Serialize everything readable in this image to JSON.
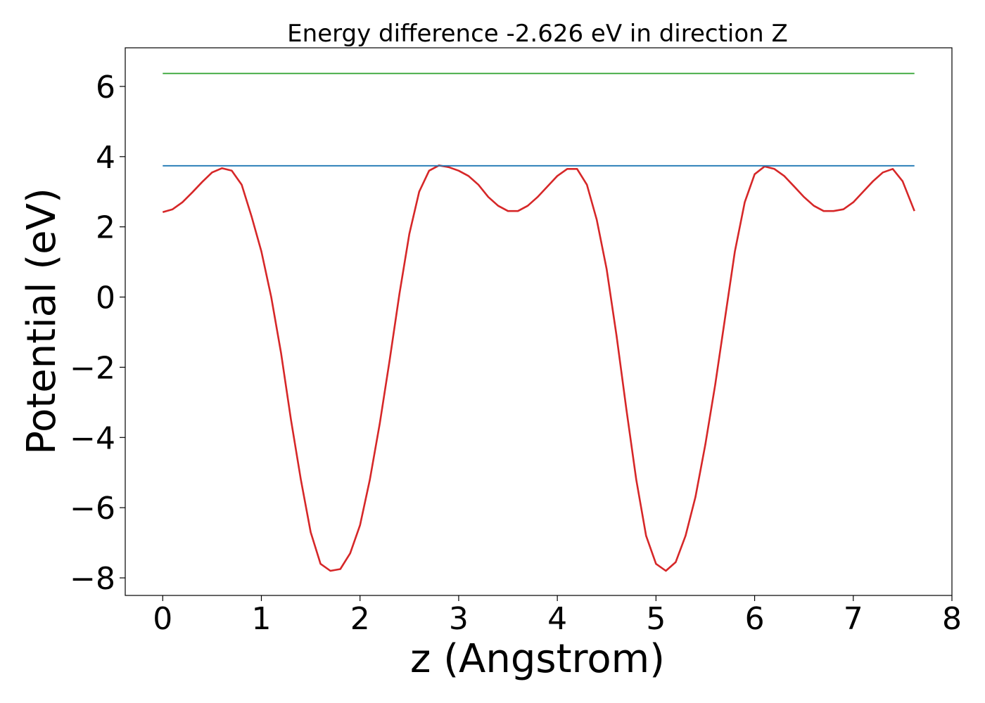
{
  "chart_data": {
    "type": "line",
    "title": "Energy difference -2.626 eV in direction Z",
    "xlabel": "z (Angstrom)",
    "ylabel": "Potential (eV)",
    "xlim": [
      -0.38,
      8.0
    ],
    "ylim": [
      -8.5,
      7.1
    ],
    "x_ticks": [
      0,
      1,
      2,
      3,
      4,
      5,
      6,
      7,
      8
    ],
    "x_tick_labels": [
      "0",
      "1",
      "2",
      "3",
      "4",
      "5",
      "6",
      "7",
      "8"
    ],
    "y_ticks": [
      -8,
      -6,
      -4,
      -2,
      0,
      2,
      4,
      6
    ],
    "y_tick_labels": [
      "−8",
      "−6",
      "−4",
      "−2",
      "0",
      "2",
      "4",
      "6"
    ],
    "grid": false,
    "series": [
      {
        "color": "#d62728",
        "x": [
          0.0,
          0.1,
          0.2,
          0.3,
          0.4,
          0.5,
          0.6,
          0.7,
          0.8,
          0.9,
          1.0,
          1.1,
          1.2,
          1.3,
          1.4,
          1.5,
          1.6,
          1.7,
          1.8,
          1.9,
          2.0,
          2.1,
          2.2,
          2.3,
          2.4,
          2.5,
          2.6,
          2.7,
          2.8,
          2.9,
          3.0,
          3.1,
          3.2,
          3.3,
          3.4,
          3.5,
          3.6,
          3.7,
          3.8,
          3.9,
          4.0,
          4.1,
          4.2,
          4.3,
          4.4,
          4.5,
          4.6,
          4.7,
          4.8,
          4.9,
          5.0,
          5.1,
          5.2,
          5.3,
          5.4,
          5.5,
          5.6,
          5.7,
          5.8,
          5.9,
          6.0,
          6.1,
          6.2,
          6.3,
          6.4,
          6.5,
          6.6,
          6.7,
          6.8,
          6.9,
          7.0,
          7.1,
          7.2,
          7.3,
          7.4,
          7.5,
          7.62
        ],
        "y": [
          2.42,
          2.5,
          2.7,
          2.98,
          3.28,
          3.55,
          3.67,
          3.6,
          3.2,
          2.3,
          1.3,
          0.0,
          -1.6,
          -3.5,
          -5.2,
          -6.7,
          -7.6,
          -7.8,
          -7.75,
          -7.3,
          -6.5,
          -5.2,
          -3.6,
          -1.8,
          0.1,
          1.8,
          3.0,
          3.6,
          3.75,
          3.7,
          3.6,
          3.45,
          3.2,
          2.85,
          2.6,
          2.45,
          2.45,
          2.6,
          2.85,
          3.15,
          3.45,
          3.65,
          3.65,
          3.2,
          2.2,
          0.8,
          -1.1,
          -3.2,
          -5.2,
          -6.8,
          -7.6,
          -7.8,
          -7.55,
          -6.8,
          -5.7,
          -4.2,
          -2.5,
          -0.6,
          1.3,
          2.7,
          3.5,
          3.72,
          3.65,
          3.45,
          3.15,
          2.85,
          2.6,
          2.45,
          2.45,
          2.5,
          2.7,
          3.0,
          3.3,
          3.55,
          3.65,
          3.3,
          2.45
        ]
      },
      {
        "color": "#1f77b4",
        "x": [
          0.0,
          7.62
        ],
        "y": [
          3.74,
          3.74
        ]
      },
      {
        "color": "#2ca02c",
        "x": [
          0.0,
          7.62
        ],
        "y": [
          6.37,
          6.37
        ]
      }
    ]
  }
}
